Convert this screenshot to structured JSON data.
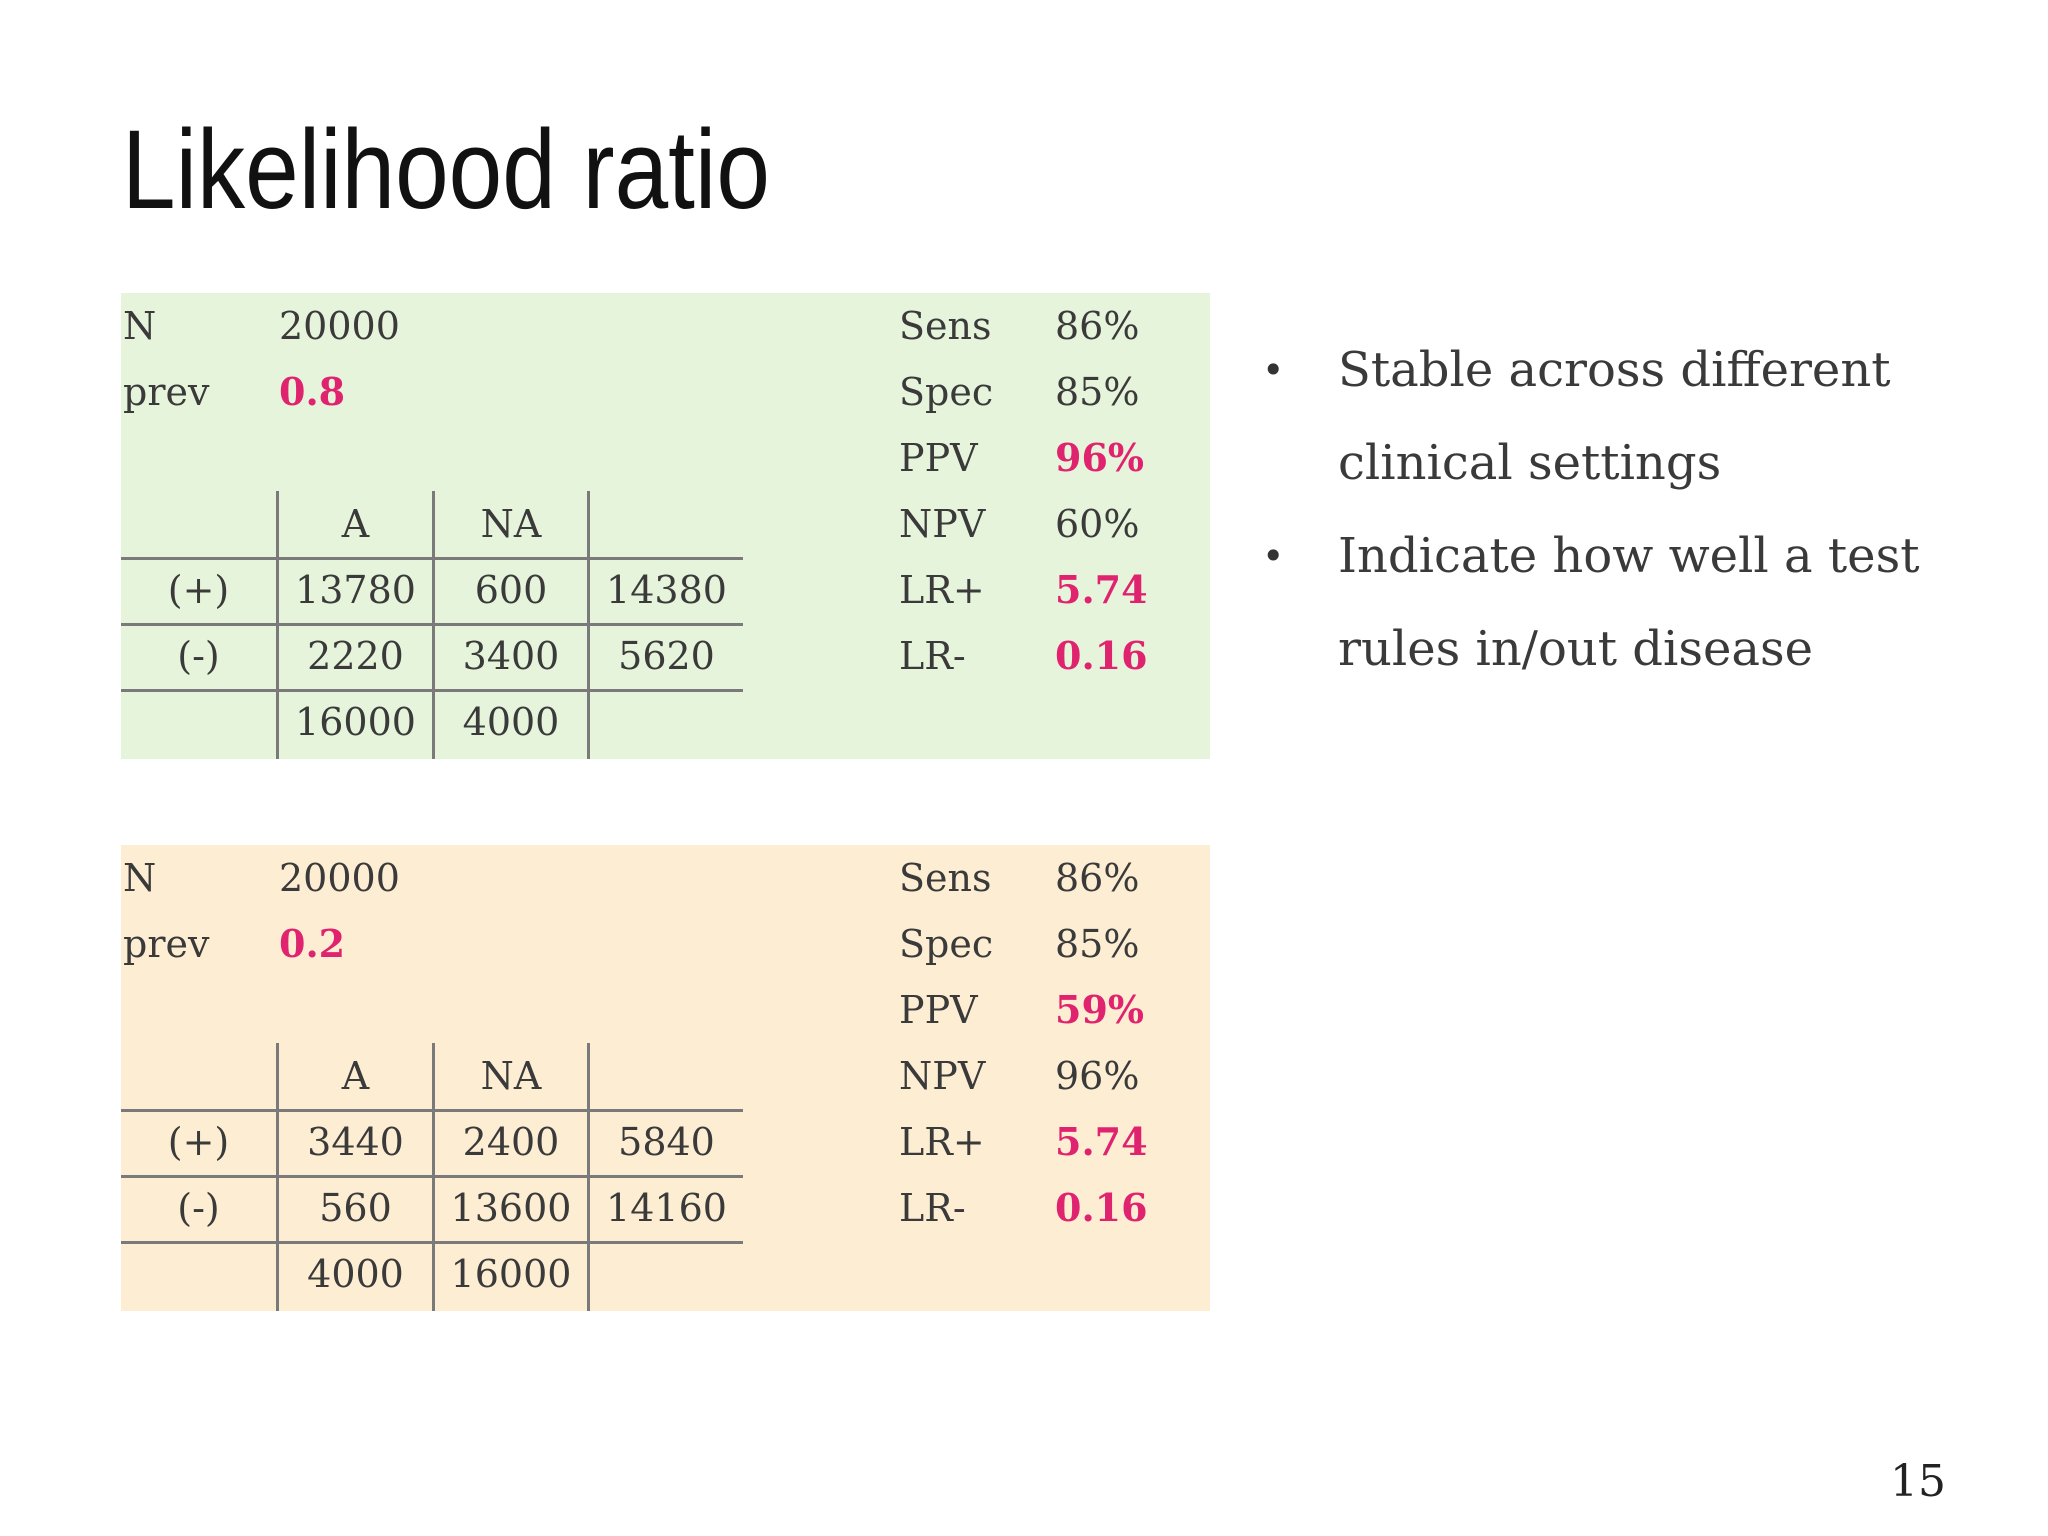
{
  "slide": {
    "title": "Likelihood ratio",
    "page_number": "15",
    "accent_color": "#e0236e"
  },
  "panels": [
    {
      "background": "#e7f4dc",
      "n_label": "N",
      "n_value": "20000",
      "prev_label": "prev",
      "prev_value": "0.8",
      "table": {
        "col_headers": [
          "A",
          "NA"
        ],
        "rows": [
          {
            "label": "(+)",
            "values": [
              "13780",
              "600",
              "14380"
            ]
          },
          {
            "label": "(-)",
            "values": [
              "2220",
              "3400",
              "5620"
            ]
          }
        ],
        "totals": [
          "16000",
          "4000"
        ]
      },
      "stats": [
        {
          "label": "Sens",
          "value": "86%"
        },
        {
          "label": "Spec",
          "value": "85%"
        },
        {
          "label": "PPV",
          "value": "96%"
        },
        {
          "label": "NPV",
          "value": "60%"
        },
        {
          "label": "LR+",
          "value": "5.74"
        },
        {
          "label": "LR-",
          "value": "0.16"
        }
      ]
    },
    {
      "background": "#fdeed3",
      "n_label": "N",
      "n_value": "20000",
      "prev_label": "prev",
      "prev_value": "0.2",
      "table": {
        "col_headers": [
          "A",
          "NA"
        ],
        "rows": [
          {
            "label": "(+)",
            "values": [
              "3440",
              "2400",
              "5840"
            ]
          },
          {
            "label": "(-)",
            "values": [
              "560",
              "13600",
              "14160"
            ]
          }
        ],
        "totals": [
          "4000",
          "16000"
        ]
      },
      "stats": [
        {
          "label": "Sens",
          "value": "86%"
        },
        {
          "label": "Spec",
          "value": "85%"
        },
        {
          "label": "PPV",
          "value": "59%"
        },
        {
          "label": "NPV",
          "value": "96%"
        },
        {
          "label": "LR+",
          "value": "5.74"
        },
        {
          "label": "LR-",
          "value": "0.16"
        }
      ]
    }
  ],
  "bullets": [
    {
      "line1": "Stable across different",
      "line2": "clinical settings"
    },
    {
      "line1": "Indicate how well a test",
      "line2": "rules in/out disease"
    }
  ]
}
